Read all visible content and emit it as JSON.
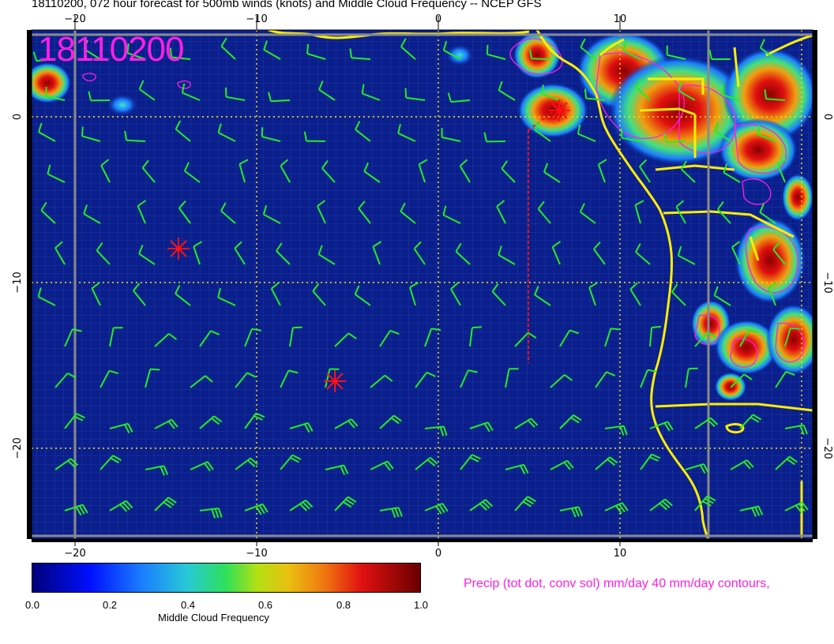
{
  "title": "18110200, 072 hour forecast for 500mb winds (knots) and Middle Cloud Frequency -- NCEP GFS",
  "run_stamp": "18110200",
  "colors": {
    "ocean": "#0a1f8c",
    "grid_fine": "#3f5fd0",
    "graticule": "#ffe000",
    "coast": "#ffee00",
    "wind_barb": "#22ee22",
    "precip_contour": "#ff1ee6",
    "storm_marker": "#ff1111",
    "frame_gray": "#8a8a8a"
  },
  "map": {
    "lon_range": [
      -23,
      20
    ],
    "lat_range": [
      -26,
      5
    ],
    "lon_labels": [
      "−20",
      "−10",
      "0",
      "10"
    ],
    "lat_labels_left": [
      "0",
      "−10",
      "−20"
    ],
    "lat_labels_right": [
      "0",
      "−10",
      "−20"
    ]
  },
  "colorbar": {
    "label": "Middle Cloud Frequency",
    "ticks": [
      "0.0",
      "0.2",
      "0.4",
      "0.6",
      "0.8",
      "1.0"
    ],
    "range": [
      0,
      1
    ]
  },
  "precip_note": "Precip (tot dot, conv sol) mm/day 40 mm/day contours,"
}
